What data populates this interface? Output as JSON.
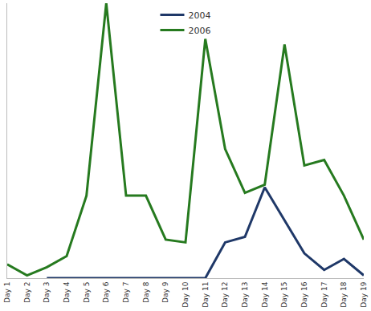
{
  "chart_data": {
    "type": "line",
    "categories": [
      "Day 1",
      "Day 2",
      "Day 3",
      "Day 4",
      "Day 5",
      "Day 6",
      "Day 7",
      "Day 8",
      "Day 9",
      "Day 10",
      "Day 11",
      "Day 12",
      "Day 13",
      "Day 14",
      "Day 15",
      "Day 16",
      "Day 17",
      "Day 18",
      "Day 19"
    ],
    "series": [
      {
        "name": "2004",
        "color": "#1f3868",
        "values": [
          null,
          null,
          0,
          0,
          0,
          0,
          0,
          0,
          0,
          0,
          0,
          13,
          15,
          33,
          21,
          9,
          3,
          7,
          1
        ]
      },
      {
        "name": "2006",
        "color": "#267a1f",
        "values": [
          5,
          1,
          4,
          8,
          30,
          100,
          30,
          30,
          14,
          13,
          87,
          47,
          31,
          34,
          85,
          41,
          43,
          30,
          14
        ]
      }
    ],
    "ylim": [
      0,
      100
    ],
    "grid": false,
    "legend": "top",
    "tick_labels": "x"
  }
}
